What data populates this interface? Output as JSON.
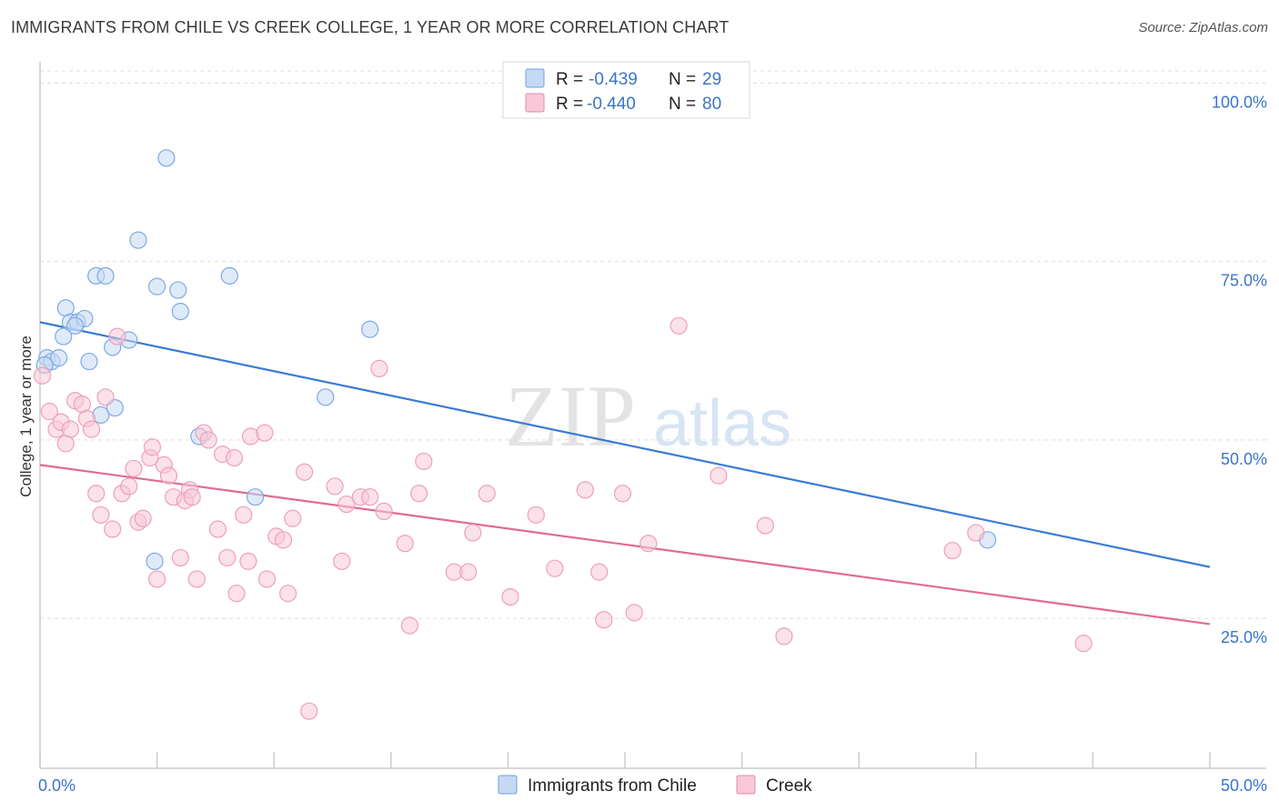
{
  "header": {
    "title": "IMMIGRANTS FROM CHILE VS CREEK COLLEGE, 1 YEAR OR MORE CORRELATION CHART",
    "source": "Source: ZipAtlas.com"
  },
  "watermark": {
    "zip": "ZIP",
    "atlas": "atlas"
  },
  "legend": {
    "rows": [
      {
        "r_label": "R =",
        "r_value": "-0.439",
        "n_label": "N =",
        "n_value": "29",
        "color": "#6fa0e0",
        "fill": "#c5d9f3"
      },
      {
        "r_label": "R =",
        "r_value": "-0.440",
        "n_label": "N =",
        "n_value": "80",
        "color": "#e58aa8",
        "fill": "#f8c8d7"
      }
    ]
  },
  "chart_data": {
    "type": "scatter",
    "xlabel": "",
    "ylabel": "College, 1 year or more",
    "xlim": [
      0,
      50
    ],
    "ylim": [
      4,
      104
    ],
    "x_tick_labels": [
      {
        "value": 0,
        "label": "0.0%"
      },
      {
        "value": 50,
        "label": "50.0%"
      }
    ],
    "y_ticks": [
      {
        "value": 100,
        "label": "100.0%"
      },
      {
        "value": 75,
        "label": "75.0%"
      },
      {
        "value": 50,
        "label": "50.0%"
      },
      {
        "value": 25,
        "label": "25.0%"
      }
    ],
    "grid": true,
    "series": [
      {
        "name": "Immigrants from Chile",
        "color": "#3a7bd5",
        "fill": "#c5d9f3",
        "stroke": "#7ea9e3",
        "trend": [
          [
            0,
            66.5
          ],
          [
            50,
            32.2
          ]
        ],
        "points": [
          [
            0.3,
            61.5
          ],
          [
            0.5,
            61.0
          ],
          [
            0.8,
            61.5
          ],
          [
            1.0,
            64.5
          ],
          [
            1.1,
            68.5
          ],
          [
            1.3,
            66.5
          ],
          [
            1.6,
            66.5
          ],
          [
            1.9,
            67.0
          ],
          [
            2.1,
            61.0
          ],
          [
            2.4,
            73.0
          ],
          [
            2.8,
            73.0
          ],
          [
            2.6,
            53.5
          ],
          [
            3.1,
            63.0
          ],
          [
            3.2,
            54.5
          ],
          [
            3.8,
            64.0
          ],
          [
            4.2,
            78.0
          ],
          [
            4.9,
            33.0
          ],
          [
            5.0,
            71.5
          ],
          [
            5.4,
            89.5
          ],
          [
            5.9,
            71.0
          ],
          [
            6.0,
            68.0
          ],
          [
            6.8,
            50.5
          ],
          [
            8.1,
            73.0
          ],
          [
            9.2,
            42.0
          ],
          [
            12.2,
            56.0
          ],
          [
            14.1,
            65.5
          ],
          [
            40.5,
            36.0
          ],
          [
            0.2,
            60.5
          ],
          [
            1.5,
            66.0
          ]
        ]
      },
      {
        "name": "Creek",
        "color": "#e06b94",
        "fill": "#f8c8d7",
        "stroke": "#eda0ba",
        "trend": [
          [
            0,
            46.5
          ],
          [
            50,
            24.2
          ]
        ],
        "points": [
          [
            0.1,
            59.0
          ],
          [
            0.4,
            54.0
          ],
          [
            0.7,
            51.5
          ],
          [
            0.9,
            52.5
          ],
          [
            1.1,
            49.5
          ],
          [
            1.3,
            51.5
          ],
          [
            1.5,
            55.5
          ],
          [
            1.8,
            55.0
          ],
          [
            2.0,
            53.0
          ],
          [
            2.2,
            51.5
          ],
          [
            2.4,
            42.5
          ],
          [
            2.6,
            39.5
          ],
          [
            2.8,
            56.0
          ],
          [
            3.1,
            37.5
          ],
          [
            3.3,
            64.5
          ],
          [
            3.5,
            42.5
          ],
          [
            3.8,
            43.5
          ],
          [
            4.0,
            46.0
          ],
          [
            4.2,
            38.5
          ],
          [
            4.4,
            39.0
          ],
          [
            4.7,
            47.5
          ],
          [
            4.8,
            49.0
          ],
          [
            5.0,
            30.5
          ],
          [
            5.3,
            46.5
          ],
          [
            5.5,
            45.0
          ],
          [
            5.7,
            42.0
          ],
          [
            6.0,
            33.5
          ],
          [
            6.2,
            41.5
          ],
          [
            6.4,
            43.0
          ],
          [
            6.5,
            42.0
          ],
          [
            6.7,
            30.5
          ],
          [
            7.0,
            51.0
          ],
          [
            7.2,
            50.0
          ],
          [
            7.6,
            37.5
          ],
          [
            7.8,
            48.0
          ],
          [
            8.0,
            33.5
          ],
          [
            8.3,
            47.5
          ],
          [
            8.4,
            28.5
          ],
          [
            8.7,
            39.5
          ],
          [
            8.9,
            33.0
          ],
          [
            9.0,
            50.5
          ],
          [
            9.6,
            51.0
          ],
          [
            9.7,
            30.5
          ],
          [
            10.1,
            36.5
          ],
          [
            10.4,
            36.0
          ],
          [
            10.6,
            28.5
          ],
          [
            10.8,
            39.0
          ],
          [
            11.3,
            45.5
          ],
          [
            11.5,
            12.0
          ],
          [
            12.6,
            43.5
          ],
          [
            12.9,
            33.0
          ],
          [
            13.1,
            41.0
          ],
          [
            13.7,
            42.0
          ],
          [
            14.1,
            42.0
          ],
          [
            14.5,
            60.0
          ],
          [
            14.7,
            40.0
          ],
          [
            15.6,
            35.5
          ],
          [
            15.8,
            24.0
          ],
          [
            16.2,
            42.5
          ],
          [
            16.4,
            47.0
          ],
          [
            17.7,
            31.5
          ],
          [
            18.3,
            31.5
          ],
          [
            18.5,
            37.0
          ],
          [
            19.1,
            42.5
          ],
          [
            20.1,
            28.0
          ],
          [
            21.2,
            39.5
          ],
          [
            22.0,
            32.0
          ],
          [
            23.3,
            43.0
          ],
          [
            23.9,
            31.5
          ],
          [
            24.1,
            24.8
          ],
          [
            24.9,
            42.5
          ],
          [
            25.4,
            25.8
          ],
          [
            26.0,
            35.5
          ],
          [
            27.3,
            66.0
          ],
          [
            29.0,
            45.0
          ],
          [
            31.0,
            38.0
          ],
          [
            31.8,
            22.5
          ],
          [
            39.0,
            34.5
          ],
          [
            40.0,
            37.0
          ],
          [
            44.6,
            21.5
          ]
        ]
      }
    ]
  }
}
